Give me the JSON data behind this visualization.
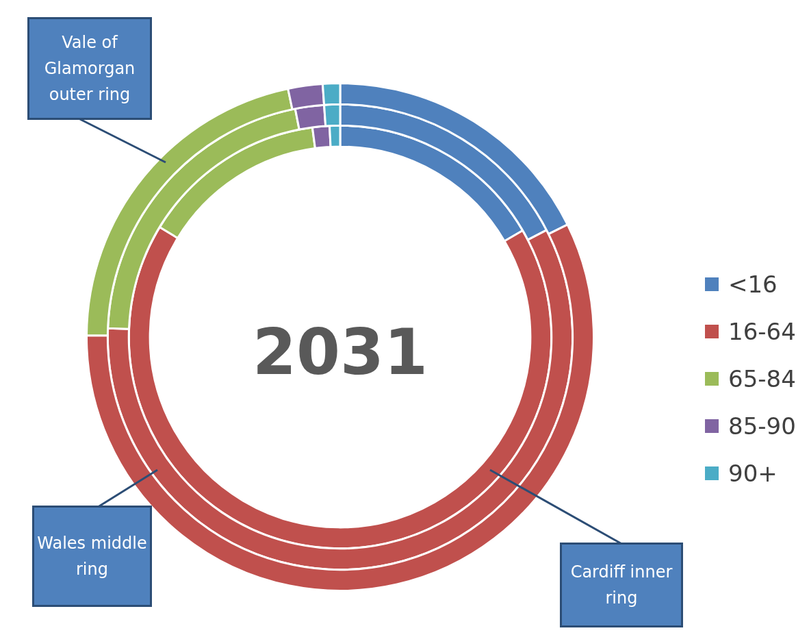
{
  "chart_data": {
    "type": "donut",
    "title": "2031",
    "categories": [
      "<16",
      "16-64",
      "65-84",
      "85-90",
      "90+"
    ],
    "colors": [
      "#4f81bd",
      "#c0504d",
      "#9bbb59",
      "#8064a2",
      "#4bacc6"
    ],
    "series": [
      {
        "values": [
          17.7,
          57.4,
          21.6,
          2.2,
          1.1
        ]
      },
      {
        "values": [
          17.4,
          58.2,
          21.3,
          2.0,
          1.1
        ]
      },
      {
        "values": [
          16.6,
          67.1,
          14.2,
          1.3,
          0.8
        ]
      }
    ],
    "legend": "right",
    "annotations": [
      "Vale of Glamorgan outer ring",
      "Wales middle ring",
      "Cardiff inner ring"
    ]
  }
}
